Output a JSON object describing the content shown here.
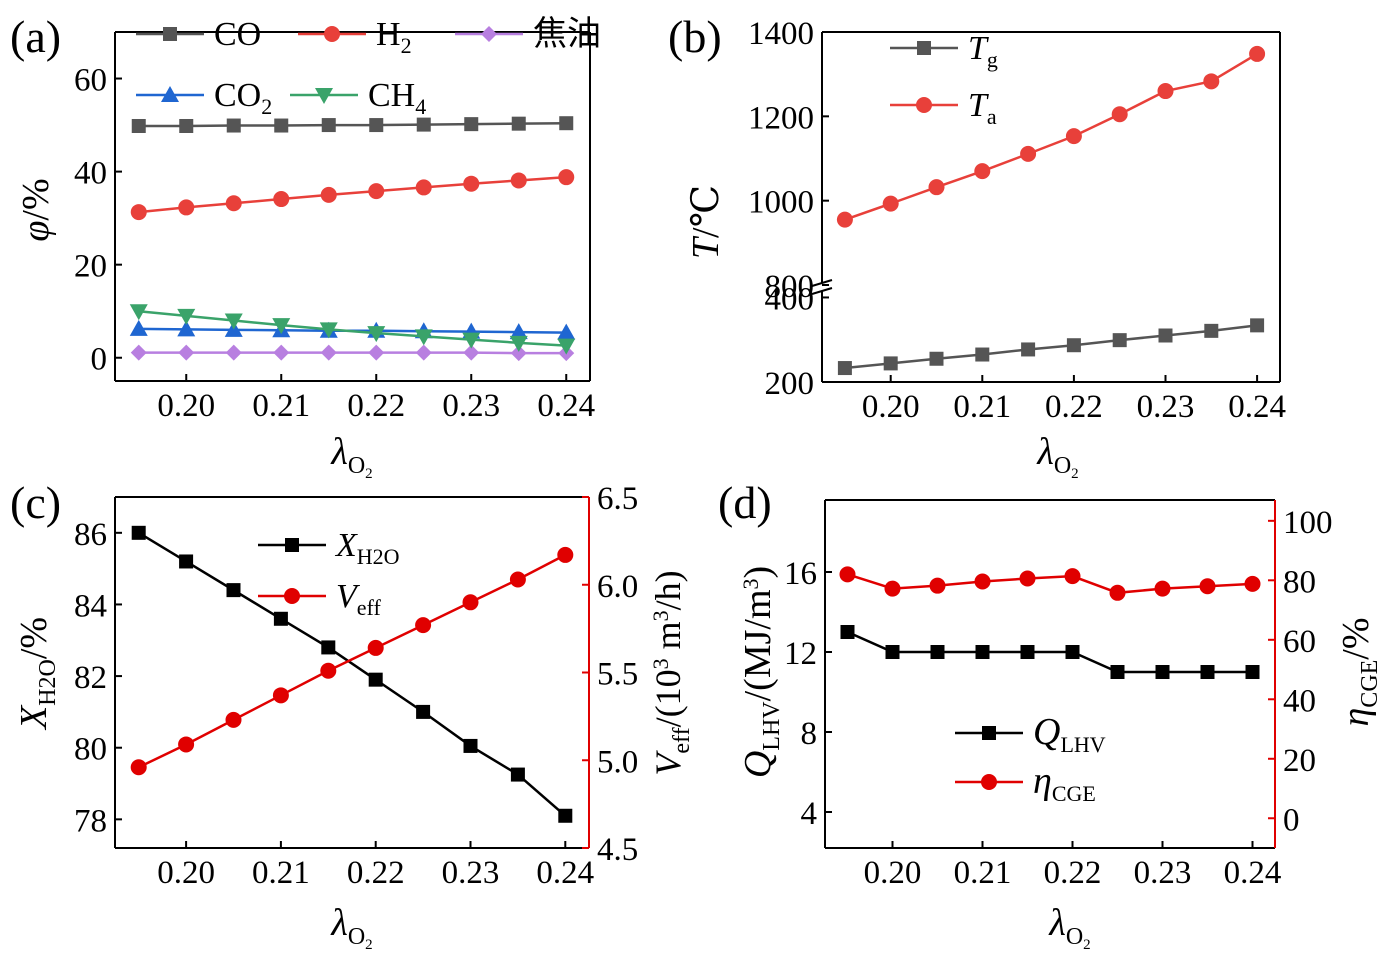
{
  "chart_data": [
    {
      "panel_label": "(a)",
      "type": "line",
      "xlabel": "λ",
      "xlabel_sub": "O",
      "xlabel_subsub": "2",
      "ylabel": "φ",
      "ylabel_unit": "/%",
      "xlim": [
        0.1925,
        0.2425
      ],
      "ylim": [
        -5,
        70
      ],
      "xticks": [
        0.2,
        0.21,
        0.22,
        0.23,
        0.24
      ],
      "xtick_labels": [
        "0.20",
        "0.21",
        "0.22",
        "0.23",
        "0.24"
      ],
      "yticks": [
        0,
        20,
        40,
        60
      ],
      "ytick_labels": [
        "0",
        "20",
        "40",
        "60"
      ],
      "x": [
        0.195,
        0.2,
        0.205,
        0.21,
        0.215,
        0.22,
        0.225,
        0.23,
        0.235,
        0.24
      ],
      "series": [
        {
          "name": "CO",
          "name_sub": "",
          "color": "#555555",
          "marker": "square",
          "values": [
            49.8,
            49.8,
            49.9,
            49.9,
            50.0,
            50.0,
            50.1,
            50.2,
            50.3,
            50.4
          ]
        },
        {
          "name": "H",
          "name_sub": "2",
          "color": "#e8403a",
          "marker": "circle",
          "values": [
            31.3,
            32.3,
            33.2,
            34.1,
            35.0,
            35.8,
            36.6,
            37.4,
            38.1,
            38.8
          ]
        },
        {
          "name": "焦油",
          "name_sub": "",
          "color": "#b87fe0",
          "marker": "diamond",
          "values": [
            1.1,
            1.1,
            1.1,
            1.1,
            1.1,
            1.1,
            1.1,
            1.1,
            1.0,
            1.0
          ]
        },
        {
          "name": "CO",
          "name_sub": "2",
          "color": "#1f66d1",
          "marker": "triangle-up",
          "values": [
            6.2,
            6.1,
            6.0,
            5.9,
            5.8,
            5.8,
            5.7,
            5.6,
            5.5,
            5.4
          ]
        },
        {
          "name": "CH",
          "name_sub": "4",
          "color": "#3aa36a",
          "marker": "triangle-down",
          "values": [
            10.0,
            9.0,
            8.0,
            7.0,
            6.1,
            5.3,
            4.6,
            3.9,
            3.2,
            2.6
          ]
        }
      ]
    },
    {
      "panel_label": "(b)",
      "type": "line",
      "xlabel": "λ",
      "xlabel_sub": "O",
      "xlabel_subsub": "2",
      "ylabel": "T",
      "ylabel_unit": "/℃",
      "xlim": [
        0.1925,
        0.2425
      ],
      "broken_axis": {
        "lower_range": [
          200,
          420
        ],
        "upper_range": [
          800,
          1400
        ]
      },
      "xticks": [
        0.2,
        0.21,
        0.22,
        0.23,
        0.24
      ],
      "xtick_labels": [
        "0.20",
        "0.21",
        "0.22",
        "0.23",
        "0.24"
      ],
      "yticks": [
        200,
        400,
        800,
        1000,
        1200,
        1400
      ],
      "ytick_labels": [
        "200",
        "400",
        "800",
        "1000",
        "1200",
        "1400"
      ],
      "x": [
        0.195,
        0.2,
        0.205,
        0.21,
        0.215,
        0.22,
        0.225,
        0.23,
        0.235,
        0.24
      ],
      "series": [
        {
          "name": "T",
          "name_sub": "g",
          "color": "#555555",
          "marker": "square",
          "values": [
            233,
            244,
            255,
            265,
            277,
            287,
            299,
            310,
            321,
            334
          ]
        },
        {
          "name": "T",
          "name_sub": "a",
          "color": "#e8403a",
          "marker": "circle",
          "values": [
            955,
            993,
            1032,
            1070,
            1111,
            1153,
            1205,
            1260,
            1283,
            1348
          ]
        }
      ]
    },
    {
      "panel_label": "(c)",
      "type": "line",
      "xlabel": "λ",
      "xlabel_sub": "O",
      "xlabel_subsub": "2",
      "ylabel": "X",
      "ylabel_sub": "H2O",
      "ylabel_unit": "/%",
      "y2label": "V",
      "y2label_sub": "eff",
      "y2label_unit": "/(10",
      "y2label_sup": "3",
      "y2label_unit2": " m",
      "y2label_sup2": "3",
      "y2label_unit3": "/h)",
      "xlim": [
        0.1925,
        0.2425
      ],
      "ylim": [
        77.2,
        87.0
      ],
      "y2lim": [
        4.5,
        6.5
      ],
      "xticks": [
        0.2,
        0.21,
        0.22,
        0.23,
        0.24
      ],
      "xtick_labels": [
        "0.20",
        "0.21",
        "0.22",
        "0.23",
        "0.24"
      ],
      "yticks": [
        78,
        80,
        82,
        84,
        86
      ],
      "ytick_labels": [
        "78",
        "80",
        "82",
        "84",
        "86"
      ],
      "y2ticks": [
        4.5,
        5.0,
        5.5,
        6.0,
        6.5
      ],
      "y2tick_labels": [
        "4.5",
        "5.0",
        "5.5",
        "6.0",
        "6.5"
      ],
      "x": [
        0.195,
        0.2,
        0.205,
        0.21,
        0.215,
        0.22,
        0.225,
        0.23,
        0.235,
        0.24
      ],
      "series": [
        {
          "name": "X",
          "name_sub": "H2O",
          "axis": "left",
          "color": "#000000",
          "marker": "square",
          "values": [
            86.0,
            85.2,
            84.4,
            83.6,
            82.8,
            81.9,
            81.0,
            80.05,
            79.25,
            78.1
          ]
        },
        {
          "name": "V",
          "name_sub": "eff",
          "axis": "right",
          "color": "#e00000",
          "marker": "circle",
          "values": [
            4.96,
            5.09,
            5.23,
            5.37,
            5.51,
            5.64,
            5.77,
            5.9,
            6.03,
            6.17
          ]
        }
      ]
    },
    {
      "panel_label": "(d)",
      "type": "line",
      "xlabel": "λ",
      "xlabel_sub": "O",
      "xlabel_subsub": "2",
      "ylabel": "Q",
      "ylabel_sub": "LHV",
      "ylabel_unit": "/(MJ/m",
      "ylabel_sup": "3",
      "ylabel_unit2": ")",
      "y2label": "η",
      "y2label_sub": "CGE",
      "y2label_unit": "/%",
      "xlim": [
        0.1925,
        0.2425
      ],
      "ylim": [
        2.2,
        19.6
      ],
      "y2lim": [
        -10,
        107
      ],
      "xticks": [
        0.2,
        0.21,
        0.22,
        0.23,
        0.24
      ],
      "xtick_labels": [
        "0.20",
        "0.21",
        "0.22",
        "0.23",
        "0.24"
      ],
      "yticks": [
        4,
        8,
        12,
        16
      ],
      "ytick_labels": [
        "4",
        "8",
        "12",
        "16"
      ],
      "y2ticks": [
        0,
        20,
        40,
        60,
        80,
        100
      ],
      "y2tick_labels": [
        "0",
        "20",
        "40",
        "60",
        "80",
        "100"
      ],
      "x": [
        0.195,
        0.2,
        0.205,
        0.21,
        0.215,
        0.22,
        0.225,
        0.23,
        0.235,
        0.24
      ],
      "series": [
        {
          "name": "Q",
          "name_sub": "LHV",
          "axis": "left",
          "color": "#000000",
          "marker": "square",
          "values": [
            13,
            12,
            12,
            12,
            12,
            12,
            11,
            11,
            11,
            11
          ]
        },
        {
          "name": "η",
          "name_sub": "CGE",
          "axis": "right",
          "color": "#e00000",
          "marker": "circle",
          "values": [
            82.0,
            77.2,
            78.2,
            79.6,
            80.6,
            81.4,
            75.8,
            77.2,
            78.0,
            78.8
          ]
        }
      ]
    }
  ]
}
